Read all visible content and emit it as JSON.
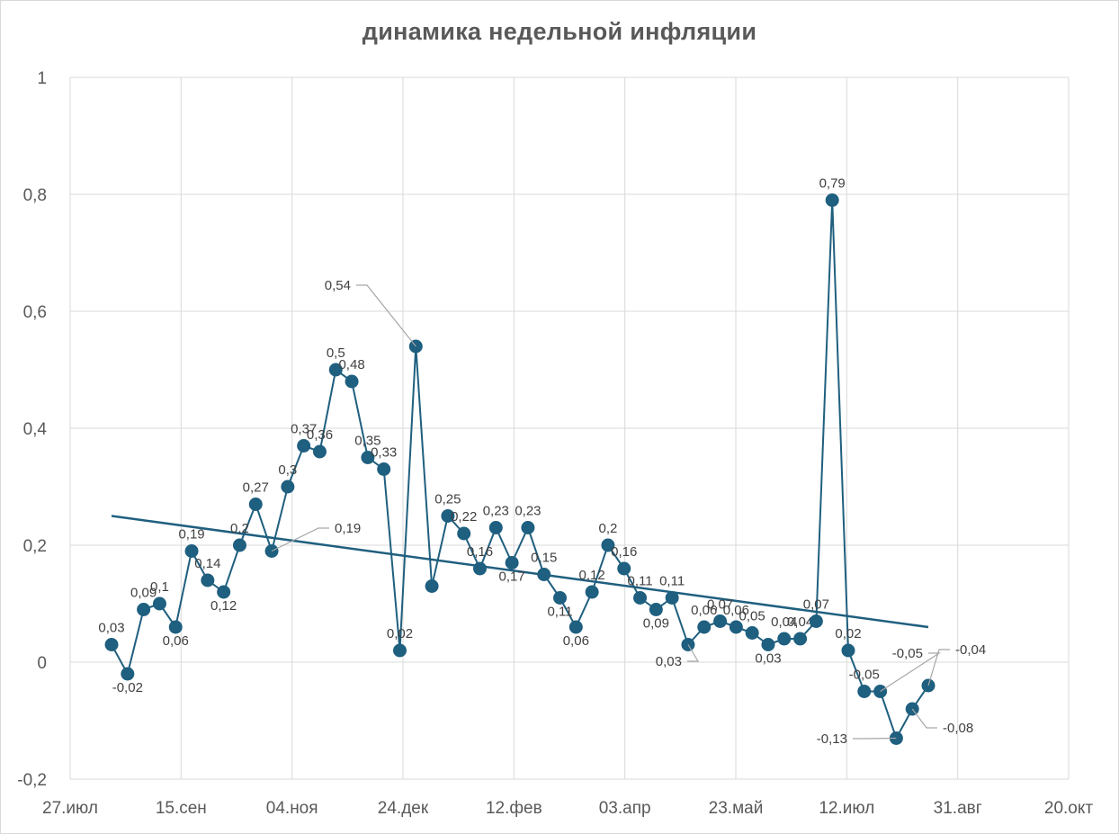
{
  "chart_data": {
    "type": "line",
    "title": "динамика недельной инфляции",
    "xlabel": "",
    "ylabel": "",
    "ylim": [
      -0.2,
      1
    ],
    "y_ticks": [
      "-0,2",
      "0",
      "0,2",
      "0,4",
      "0,6",
      "0,8",
      "1"
    ],
    "x_ticks": [
      "27.июл",
      "15.сен",
      "04.ноя",
      "24.дек",
      "12.фев",
      "03.апр",
      "23.май",
      "12.июл",
      "31.авг",
      "20.окт"
    ],
    "grid": true,
    "legend": "none",
    "colors": {
      "series": "#1f5f7f",
      "trend": "#1f5f7f",
      "grid": "#d9d9d9",
      "leader": "#a6a6a6"
    },
    "series": [
      {
        "values": [
          0.03,
          -0.02,
          0.09,
          0.1,
          0.06,
          0.19,
          0.14,
          0.12,
          0.2,
          0.27,
          0.19,
          0.3,
          0.37,
          0.36,
          0.5,
          0.48,
          0.35,
          0.33,
          0.02,
          0.54,
          0.13,
          0.25,
          0.22,
          0.16,
          0.23,
          0.17,
          0.23,
          0.15,
          0.11,
          0.06,
          0.12,
          0.2,
          0.16,
          0.11,
          0.09,
          0.11,
          0.03,
          0.06,
          0.07,
          0.06,
          0.05,
          0.03,
          0.04,
          0.04,
          0.07,
          0.79,
          0.02,
          -0.05,
          -0.05,
          -0.13,
          -0.08,
          -0.04
        ],
        "labels": [
          "0,03",
          "-0,02",
          "0,09",
          "0,1",
          "0,06",
          "0,19",
          "0,14",
          "0,12",
          "0,2",
          "0,27",
          "0,19",
          "0,3",
          "0,37",
          "0,36",
          "0,5",
          "0,48",
          "0,35",
          "0,33",
          "0,02",
          "0,54",
          "",
          "0,25",
          "0,22",
          "0,16",
          "0,23",
          "0,17",
          "0,23",
          "0,15",
          "0,11",
          "0,06",
          "0,12",
          "0,2",
          "0,16",
          "0,11",
          "0,09",
          "0,11",
          "0,03",
          "0,06",
          "0,07",
          "0,06",
          "0,05",
          "0,03",
          "0,04",
          "0,04",
          "0,07",
          "0,79",
          "0,02",
          "-0,05",
          "-0,05",
          "-0,13",
          "-0,08",
          "-0,04"
        ]
      }
    ],
    "trendline": {
      "type": "linear",
      "start": 0.25,
      "end": 0.06
    }
  }
}
